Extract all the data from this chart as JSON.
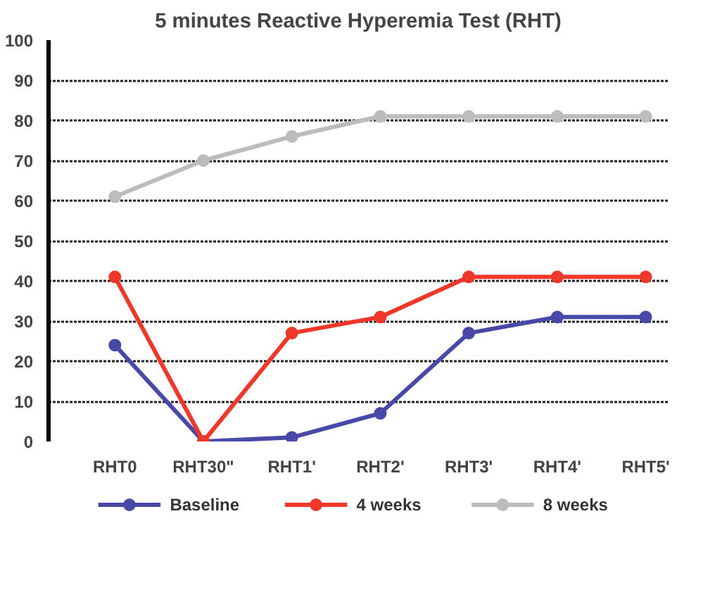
{
  "chart_data": {
    "type": "line",
    "title": "5 minutes Reactive Hyperemia Test (RHT)",
    "categories": [
      "RHT0",
      "RHT30\"",
      "RHT1'",
      "RHT2'",
      "RHT3'",
      "RHT4'",
      "RHT5'"
    ],
    "series": [
      {
        "name": "Baseline",
        "color": "#4848a8",
        "values": [
          24,
          0,
          1,
          7,
          27,
          31,
          31
        ]
      },
      {
        "name": "4 weeks",
        "color": "#f0382a",
        "values": [
          41,
          0,
          27,
          31,
          41,
          41,
          41
        ]
      },
      {
        "name": "8 weeks",
        "color": "#bcbcbc",
        "values": [
          61,
          70,
          76,
          81,
          81,
          81,
          81
        ]
      }
    ],
    "ylim": [
      0,
      100
    ],
    "yticks": [
      0,
      10,
      20,
      30,
      40,
      50,
      60,
      70,
      80,
      90,
      100
    ],
    "grid": "y",
    "legend": "bottom",
    "marker": "circle",
    "line_style": "solid"
  }
}
